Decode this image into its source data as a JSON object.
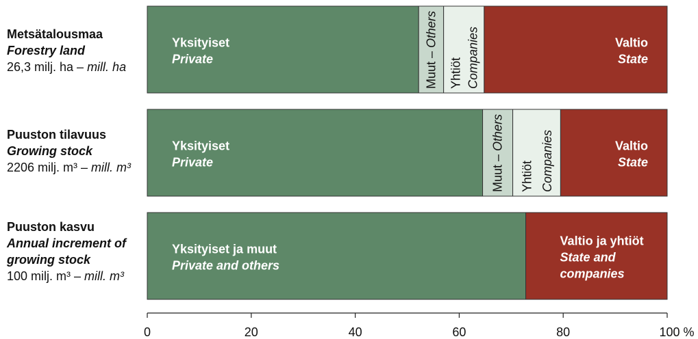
{
  "colors": {
    "private": "#5e8868",
    "others": "#c8d8cc",
    "companies": "#e9f1ea",
    "state": "#993226",
    "stroke": "#333333"
  },
  "rows": [
    {
      "title": "Metsätalousmaa",
      "title_en": "Forestry land",
      "amount": "26,3 milj. ha – ",
      "amount_en": "mill. ha"
    },
    {
      "title": "Puuston tilavuus",
      "title_en": "Growing stock",
      "amount": "2206 milj. m³ – ",
      "amount_en": "mill. m³"
    },
    {
      "title": "Puuston kasvu",
      "title_en_1": "Annual increment of",
      "title_en_2": "growing stock",
      "amount": "100 milj. m³ – ",
      "amount_en": "mill. m³"
    }
  ],
  "chart_data": {
    "type": "bar",
    "orientation": "horizontal",
    "stacked": true,
    "xlim": [
      0,
      100
    ],
    "xticks": [
      0,
      20,
      40,
      60,
      80
    ],
    "xtick_last_label": "100 %",
    "bars": [
      {
        "segments": [
          {
            "key": "private",
            "value": 52.2,
            "label": "Yksityiset",
            "label_en": "Private"
          },
          {
            "key": "others",
            "value": 4.8,
            "label": "Muut – Others",
            "vertical": true
          },
          {
            "key": "companies",
            "value": 7.8,
            "label": "Yhtiöt",
            "label_en": "Companies",
            "vertical": true
          },
          {
            "key": "state",
            "value": 35.2,
            "label": "Valtio",
            "label_en": "State"
          }
        ]
      },
      {
        "segments": [
          {
            "key": "private",
            "value": 64.5,
            "label": "Yksityiset",
            "label_en": "Private"
          },
          {
            "key": "others",
            "value": 5.8,
            "label": "Muut – Others",
            "vertical": true
          },
          {
            "key": "companies",
            "value": 9.2,
            "label": "Yhtiöt",
            "label_en": "Companies",
            "vertical": true
          },
          {
            "key": "state",
            "value": 20.5,
            "label": "Valtio",
            "label_en": "State"
          }
        ]
      },
      {
        "segments": [
          {
            "key": "private",
            "value": 72.8,
            "label": "Yksityiset ja muut",
            "label_en": "Private and others"
          },
          {
            "key": "state",
            "value": 27.2,
            "label": "Valtio ja yhtiöt",
            "label_en": "State  and",
            "label_en_2": "companies"
          }
        ]
      }
    ]
  }
}
